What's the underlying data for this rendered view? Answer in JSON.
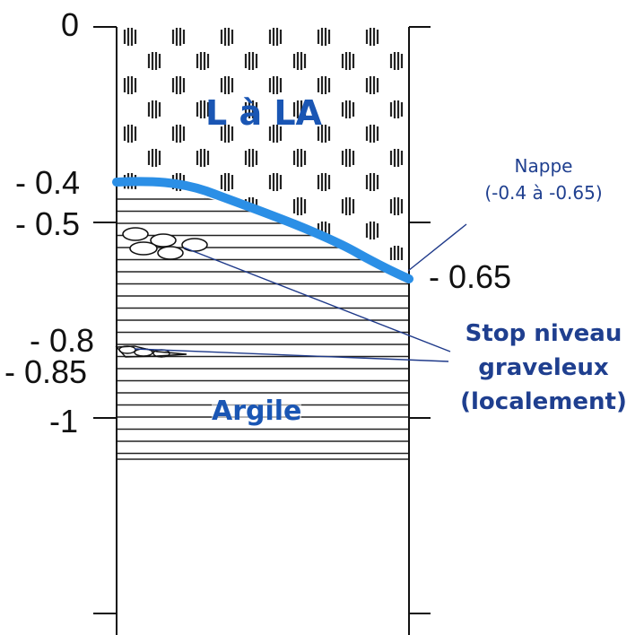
{
  "depths": {
    "d0": "0",
    "d04": "- 0.4",
    "d05": "- 0.5",
    "d065": "- 0.65",
    "d08": "- 0.8",
    "d085": "- 0.85",
    "d1": "-1"
  },
  "layers": {
    "top_label": "L à LA",
    "bottom_label": "Argile"
  },
  "annotations": {
    "nappe_title": "Nappe",
    "nappe_range": "(-0.4 à -0.65)",
    "stop_line1": "Stop niveau",
    "stop_line2": "graveleux",
    "stop_line3": "(localement)"
  },
  "colors": {
    "water_table": "#2b8fe6",
    "annotation_text": "#1f3f8f",
    "leader_line": "#1f3a8a",
    "layer_label": "#1a56b4"
  }
}
